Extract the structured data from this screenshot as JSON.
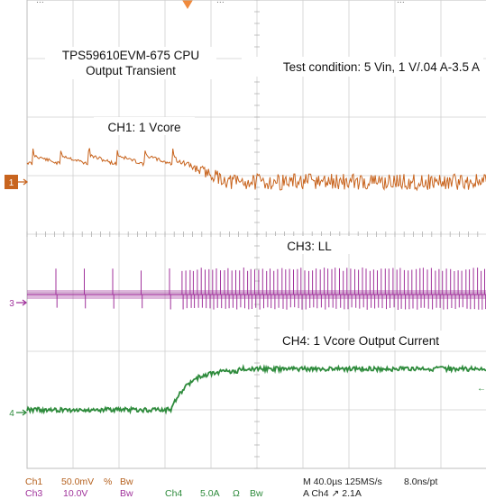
{
  "top_bar": {
    "left_text": "...",
    "center_text": "...",
    "right_text": "..."
  },
  "chart_data": {
    "type": "line",
    "title": "TPS59610EVM-675 CPU Output Transient",
    "title_lines": [
      "TPS59610EVM-675 CPU",
      "Output Transient"
    ],
    "test_condition": "Test condition: 5 Vin, 1 V/.04 A-3.5 A",
    "time_per_div_us": 40.0,
    "trigger": "A Ch4 ↗ 2.1A",
    "grid": true,
    "divisions": {
      "x": 10,
      "y": 8
    },
    "series": [
      {
        "name": "CH1: 1 Vcore",
        "channel": "1",
        "scale": "50.0mV",
        "color": "#c8641e",
        "shape": "vcore-ripple-then-settle"
      },
      {
        "name": "CH3: LL",
        "channel": "3",
        "scale": "10.0V",
        "color": "#a0329b",
        "shape": "sparse-then-dense-pulses"
      },
      {
        "name": "CH4: 1 Vcore Output Current",
        "channel": "4",
        "scale": "5.0A",
        "color": "#2e8b3c",
        "step_from_A": 0.04,
        "step_to_A": 3.5
      }
    ]
  },
  "status": {
    "ch1_label": "Ch1",
    "ch1_scale": "50.0mV",
    "ch1_flag": "%",
    "ch1_bw": "Bw",
    "ch3_label": "Ch3",
    "ch3_scale": "10.0V",
    "ch3_bw": "Bw",
    "ch4_label": "Ch4",
    "ch4_scale": "5.0A",
    "ch4_unit": "Ω",
    "ch4_bw": "Bw",
    "timebase": "M 40.0µs 125MS/s",
    "resolution": "8.0ns/pt",
    "trigger": "A Ch4 ↗ 2.1A"
  },
  "markers": {
    "ch1": "1",
    "ch3": "3",
    "ch4": "4",
    "trigger_level": "←"
  },
  "colors": {
    "ch1": "#c8641e",
    "ch3": "#a0329b",
    "ch4": "#2e8b3c",
    "grid": "#cfcfcf",
    "text_orange": "#b5611e",
    "text_green": "#2e8b3c"
  }
}
